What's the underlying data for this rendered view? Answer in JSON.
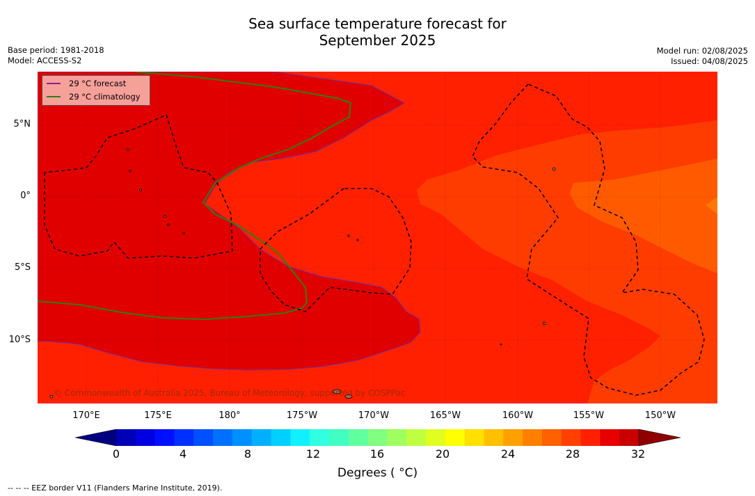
{
  "title": {
    "line1": "Sea surface temperature forecast for",
    "line2": "September 2025"
  },
  "meta_left": {
    "base_period": "Base period: 1981-2018",
    "model": "Model: ACCESS-S2"
  },
  "meta_right": {
    "model_run": "Model run: 02/08/2025",
    "issued": "Issued: 04/08/2025"
  },
  "legend": {
    "forecast_label": "29 °C  forecast",
    "climatology_label": "29 °C  climatology",
    "forecast_color": "#8b1f8f",
    "climatology_color": "#2e7d14"
  },
  "map": {
    "lat_labels": [
      "5°N",
      "0°",
      "5°S",
      "10°S"
    ],
    "lon_labels": [
      "170°E",
      "175°E",
      "180°",
      "175°W",
      "170°W",
      "165°W",
      "160°W",
      "155°W",
      "150°W"
    ],
    "colors": {
      "above_29": "#e00000",
      "band_28": "#ff2000",
      "band_27": "#ff3c00",
      "band_26": "#ff5a00",
      "band_25": "#ff7800"
    }
  },
  "copyright": "© Commonwealth of Australia 2025, Bureau of Meteorology, supported by COSPPac",
  "colorbar": {
    "label": "Degrees ( °C)",
    "ticks": [
      "0",
      "4",
      "8",
      "12",
      "16",
      "20",
      "24",
      "28",
      "32"
    ],
    "colors": [
      "#000080",
      "#0000b4",
      "#0000e0",
      "#0010ff",
      "#0030ff",
      "#0050ff",
      "#0070ff",
      "#0090ff",
      "#00b0ff",
      "#00d0ff",
      "#10f0ff",
      "#30ffe0",
      "#40ffc0",
      "#60ffa0",
      "#80ff80",
      "#a0ff60",
      "#c0ff40",
      "#e0ff20",
      "#ffff00",
      "#ffe000",
      "#ffc000",
      "#ffa000",
      "#ff8000",
      "#ff6000",
      "#ff4000",
      "#ff2000",
      "#e80000",
      "#c80000",
      "#900000"
    ]
  },
  "footnote": "--  --  -- EEZ border V11 (Flanders Marine Institute, 2019)."
}
